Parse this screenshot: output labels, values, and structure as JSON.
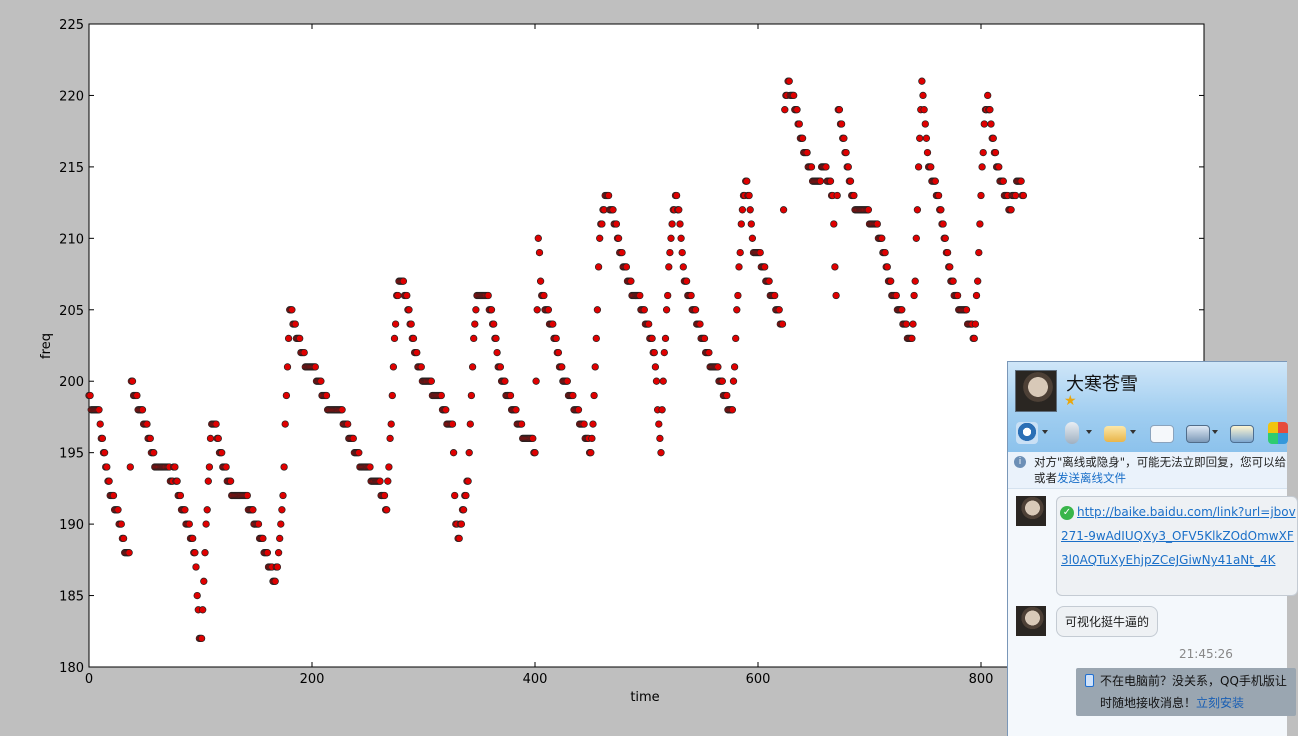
{
  "chart_data": {
    "type": "scatter",
    "xlabel": "time",
    "ylabel": "freq",
    "xlim": [
      0,
      1000
    ],
    "ylim": [
      180,
      225
    ],
    "xticks": [
      "0",
      "200",
      "400",
      "600",
      "800"
    ],
    "yticks": [
      "180",
      "185",
      "190",
      "195",
      "200",
      "205",
      "210",
      "215",
      "220",
      "225"
    ],
    "marker_color": "#e00000",
    "marker_edge": "#222222",
    "grid": false,
    "segments": [
      [
        0,
        199
      ],
      [
        3,
        198
      ],
      [
        8,
        198
      ],
      [
        10,
        197
      ],
      [
        13,
        195
      ],
      [
        17,
        193
      ],
      [
        20,
        192
      ],
      [
        24,
        191
      ],
      [
        28,
        190
      ],
      [
        32,
        188
      ],
      [
        36,
        188
      ],
      [
        38,
        200
      ],
      [
        41,
        199
      ],
      [
        46,
        198
      ],
      [
        50,
        197
      ],
      [
        54,
        196
      ],
      [
        57,
        195
      ],
      [
        60,
        194
      ],
      [
        64,
        194
      ],
      [
        70,
        194
      ],
      [
        74,
        193
      ],
      [
        77,
        194
      ],
      [
        80,
        192
      ],
      [
        84,
        191
      ],
      [
        88,
        190
      ],
      [
        92,
        189
      ],
      [
        96,
        187
      ],
      [
        99,
        182
      ],
      [
        101,
        182
      ],
      [
        104,
        188
      ],
      [
        107,
        193
      ],
      [
        110,
        197
      ],
      [
        113,
        197
      ],
      [
        117,
        195
      ],
      [
        121,
        194
      ],
      [
        125,
        193
      ],
      [
        130,
        192
      ],
      [
        134,
        192
      ],
      [
        140,
        192
      ],
      [
        145,
        191
      ],
      [
        150,
        190
      ],
      [
        154,
        189
      ],
      [
        158,
        188
      ],
      [
        162,
        187
      ],
      [
        167,
        186
      ],
      [
        170,
        188
      ],
      [
        174,
        192
      ],
      [
        177,
        199
      ],
      [
        180,
        205
      ],
      [
        184,
        204
      ],
      [
        187,
        203
      ],
      [
        191,
        202
      ],
      [
        196,
        201
      ],
      [
        201,
        201
      ],
      [
        206,
        200
      ],
      [
        211,
        199
      ],
      [
        216,
        198
      ],
      [
        220,
        198
      ],
      [
        225,
        198
      ],
      [
        230,
        197
      ],
      [
        235,
        196
      ],
      [
        240,
        195
      ],
      [
        245,
        194
      ],
      [
        250,
        194
      ],
      [
        255,
        193
      ],
      [
        259,
        193
      ],
      [
        263,
        192
      ],
      [
        267,
        191
      ],
      [
        269,
        194
      ],
      [
        272,
        199
      ],
      [
        276,
        206
      ],
      [
        280,
        207
      ],
      [
        284,
        206
      ],
      [
        288,
        204
      ],
      [
        292,
        202
      ],
      [
        296,
        201
      ],
      [
        300,
        200
      ],
      [
        305,
        200
      ],
      [
        309,
        199
      ],
      [
        314,
        199
      ],
      [
        318,
        198
      ],
      [
        322,
        197
      ],
      [
        326,
        197
      ],
      [
        329,
        190
      ],
      [
        332,
        189
      ],
      [
        336,
        191
      ],
      [
        340,
        193
      ],
      [
        342,
        197
      ],
      [
        345,
        203
      ],
      [
        348,
        206
      ],
      [
        352,
        206
      ],
      [
        356,
        206
      ],
      [
        360,
        205
      ],
      [
        363,
        204
      ],
      [
        367,
        201
      ],
      [
        371,
        200
      ],
      [
        376,
        199
      ],
      [
        381,
        198
      ],
      [
        386,
        197
      ],
      [
        391,
        196
      ],
      [
        396,
        196
      ],
      [
        400,
        195
      ],
      [
        403,
        210
      ],
      [
        406,
        206
      ],
      [
        410,
        205
      ],
      [
        414,
        204
      ],
      [
        418,
        203
      ],
      [
        422,
        201
      ],
      [
        427,
        200
      ],
      [
        432,
        199
      ],
      [
        437,
        198
      ],
      [
        442,
        197
      ],
      [
        446,
        196
      ],
      [
        450,
        195
      ],
      [
        452,
        197
      ],
      [
        455,
        203
      ],
      [
        458,
        210
      ],
      [
        461,
        212
      ],
      [
        464,
        213
      ],
      [
        468,
        212
      ],
      [
        472,
        211
      ],
      [
        476,
        209
      ],
      [
        480,
        208
      ],
      [
        484,
        207
      ],
      [
        488,
        206
      ],
      [
        492,
        206
      ],
      [
        496,
        205
      ],
      [
        500,
        204
      ],
      [
        504,
        203
      ],
      [
        508,
        201
      ],
      [
        511,
        197
      ],
      [
        513,
        195
      ],
      [
        515,
        200
      ],
      [
        518,
        205
      ],
      [
        521,
        209
      ],
      [
        524,
        212
      ],
      [
        527,
        213
      ],
      [
        530,
        211
      ],
      [
        534,
        207
      ],
      [
        538,
        206
      ],
      [
        542,
        205
      ],
      [
        546,
        204
      ],
      [
        550,
        203
      ],
      [
        554,
        202
      ],
      [
        558,
        201
      ],
      [
        562,
        201
      ],
      [
        566,
        200
      ],
      [
        570,
        199
      ],
      [
        574,
        198
      ],
      [
        577,
        198
      ],
      [
        580,
        203
      ],
      [
        583,
        208
      ],
      [
        586,
        212
      ],
      [
        589,
        214
      ],
      [
        592,
        213
      ],
      [
        596,
        209
      ],
      [
        600,
        209
      ],
      [
        604,
        208
      ],
      [
        608,
        207
      ],
      [
        613,
        206
      ],
      [
        617,
        205
      ],
      [
        622,
        204
      ],
      [
        624,
        219
      ],
      [
        627,
        221
      ],
      [
        630,
        220
      ],
      [
        634,
        219
      ],
      [
        638,
        217
      ],
      [
        642,
        216
      ],
      [
        646,
        215
      ],
      [
        651,
        214
      ],
      [
        655,
        214
      ],
      [
        659,
        215
      ],
      [
        663,
        214
      ],
      [
        667,
        213
      ],
      [
        670,
        206
      ],
      [
        672,
        219
      ],
      [
        676,
        217
      ],
      [
        680,
        215
      ],
      [
        684,
        213
      ],
      [
        688,
        212
      ],
      [
        693,
        212
      ],
      [
        697,
        212
      ],
      [
        701,
        211
      ],
      [
        705,
        211
      ],
      [
        709,
        210
      ],
      [
        713,
        209
      ],
      [
        717,
        207
      ],
      [
        722,
        206
      ],
      [
        727,
        205
      ],
      [
        731,
        204
      ],
      [
        735,
        203
      ],
      [
        738,
        203
      ],
      [
        741,
        207
      ],
      [
        744,
        215
      ],
      [
        747,
        221
      ],
      [
        750,
        218
      ],
      [
        753,
        215
      ],
      [
        757,
        214
      ],
      [
        761,
        213
      ],
      [
        765,
        211
      ],
      [
        769,
        209
      ],
      [
        773,
        207
      ],
      [
        777,
        206
      ],
      [
        781,
        205
      ],
      [
        785,
        205
      ],
      [
        790,
        204
      ],
      [
        794,
        203
      ],
      [
        797,
        207
      ],
      [
        800,
        213
      ],
      [
        803,
        218
      ],
      [
        806,
        220
      ],
      [
        809,
        218
      ],
      [
        812,
        216
      ],
      [
        815,
        215
      ],
      [
        818,
        214
      ],
      [
        822,
        213
      ],
      [
        826,
        212
      ],
      [
        830,
        213
      ],
      [
        834,
        214
      ],
      [
        838,
        213
      ]
    ]
  },
  "chat": {
    "name": "大寒苍雪",
    "notice_line1": "对方\"离线或隐身\"，可能无法立即回复，您可以给",
    "notice_line2_prefix": "或者",
    "notice_line2_link": "发送离线文件",
    "link_line1": "http://baike.baidu.com/link?url=jbov",
    "link_line2": "271-9wAdIUQXy3_OFV5KlkZOdOmwXF",
    "link_line3": "3l0AQTuXyEhjpZCeJGiwNy41aNt_4K",
    "message2": "可视化挺牛逼的",
    "time": "21:45:26",
    "promo_line1": "不在电脑前？没关系，QQ手机版让",
    "promo_line2_prefix": "时随地接收消息！",
    "promo_link": "立刻安装"
  }
}
